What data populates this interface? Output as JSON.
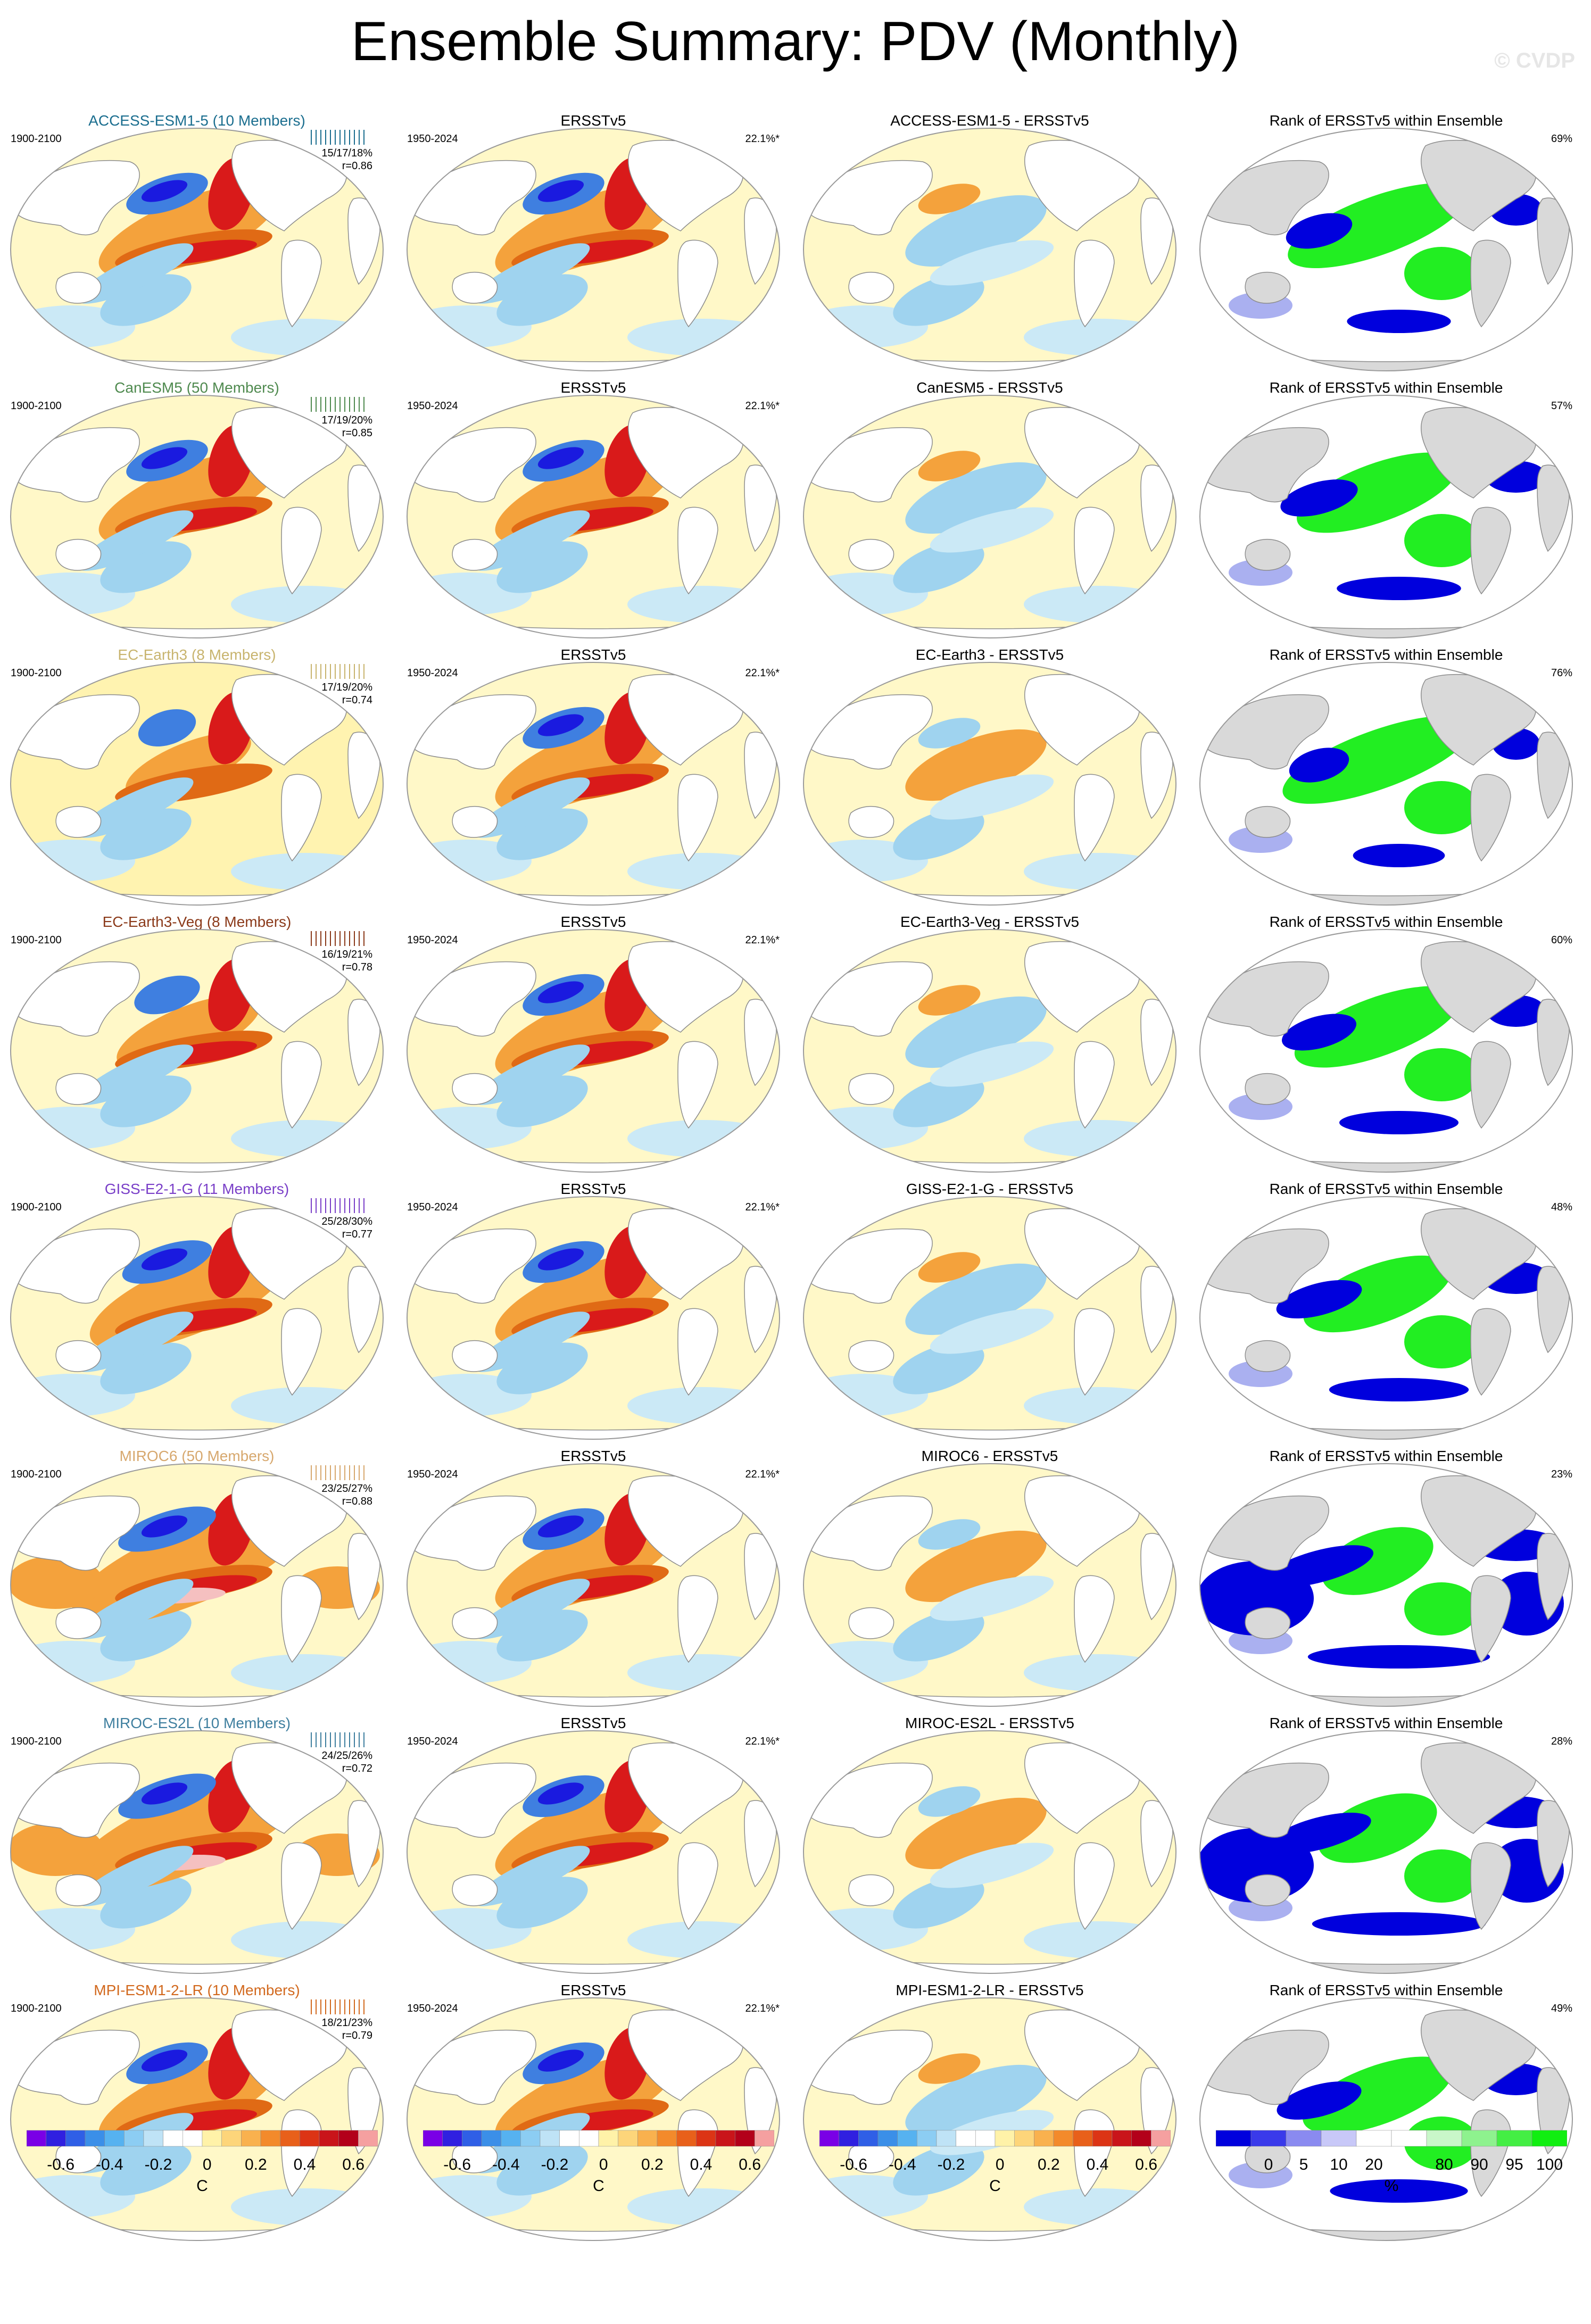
{
  "title": "Ensemble Summary: PDV (Monthly)",
  "watermark": "© CVDP",
  "colors": {
    "deep_blue": "#1a1adf",
    "mid_blue": "#3f7fe0",
    "light_blue": "#9fd3ef",
    "pale_blue": "#cbe9f6",
    "pale_yellow": "#fff3b0",
    "orange": "#f4a23c",
    "dark_orange": "#e06a15",
    "red": "#d91a1a",
    "dark_red": "#b3001a",
    "land_gray": "#d9d9d9",
    "rank_green": "#22ee22",
    "rank_blue": "#0000dd",
    "rank_lightblue": "#aab0f0",
    "rank_palegreen": "#c9f7c9"
  },
  "rows": [
    {
      "model_title": "ACCESS-ESM1-5 (10 Members)",
      "title_color": "#1b6e8f",
      "model_period": "1900-2100",
      "stats": "15/17/18%",
      "corr": "r=0.86",
      "obs_title": "ERSSTv5",
      "obs_period": "1950-2024",
      "obs_pct": "22.1%*",
      "diff_title": "ACCESS-ESM1-5 - ERSSTv5",
      "rank_title": "Rank of ERSSTv5 within Ensemble",
      "rank_pct": "69%",
      "model_strength": 1.0,
      "diff_sign": -1
    },
    {
      "model_title": "CanESM5 (50 Members)",
      "title_color": "#4f8a4f",
      "model_period": "1900-2100",
      "stats": "17/19/20%",
      "corr": "r=0.85",
      "obs_title": "ERSSTv5",
      "obs_period": "1950-2024",
      "obs_pct": "22.1%*",
      "diff_title": "CanESM5 - ERSSTv5",
      "rank_title": "Rank of ERSSTv5 within Ensemble",
      "rank_pct": "57%",
      "model_strength": 1.0,
      "diff_sign": -1
    },
    {
      "model_title": "EC-Earth3 (8 Members)",
      "title_color": "#c8b46e",
      "model_period": "1900-2100",
      "stats": "17/19/20%",
      "corr": "r=0.74",
      "obs_title": "ERSSTv5",
      "obs_period": "1950-2024",
      "obs_pct": "22.1%*",
      "diff_title": "EC-Earth3 - ERSSTv5",
      "rank_title": "Rank of ERSSTv5 within Ensemble",
      "rank_pct": "76%",
      "model_strength": 0.7,
      "diff_sign": 1
    },
    {
      "model_title": "EC-Earth3-Veg (8 Members)",
      "title_color": "#8b3a1a",
      "model_period": "1900-2100",
      "stats": "16/19/21%",
      "corr": "r=0.78",
      "obs_title": "ERSSTv5",
      "obs_period": "1950-2024",
      "obs_pct": "22.1%*",
      "diff_title": "EC-Earth3-Veg - ERSSTv5",
      "rank_title": "Rank of ERSSTv5 within Ensemble",
      "rank_pct": "60%",
      "model_strength": 0.8,
      "diff_sign": -1
    },
    {
      "model_title": "GISS-E2-1-G (11 Members)",
      "title_color": "#7a3fc8",
      "model_period": "1900-2100",
      "stats": "25/28/30%",
      "corr": "r=0.77",
      "obs_title": "ERSSTv5",
      "obs_period": "1950-2024",
      "obs_pct": "22.1%*",
      "diff_title": "GISS-E2-1-G - ERSSTv5",
      "rank_title": "Rank of ERSSTv5 within Ensemble",
      "rank_pct": "48%",
      "model_strength": 1.1,
      "diff_sign": -1
    },
    {
      "model_title": "MIROC6 (50 Members)",
      "title_color": "#d7a86e",
      "model_period": "1900-2100",
      "stats": "23/25/27%",
      "corr": "r=0.88",
      "obs_title": "ERSSTv5",
      "obs_period": "1950-2024",
      "obs_pct": "22.1%*",
      "diff_title": "MIROC6 - ERSSTv5",
      "rank_title": "Rank of ERSSTv5 within Ensemble",
      "rank_pct": "23%",
      "model_strength": 1.5,
      "diff_sign": 1
    },
    {
      "model_title": "MIROC-ES2L (10 Members)",
      "title_color": "#3f7f9f",
      "model_period": "1900-2100",
      "stats": "24/25/26%",
      "corr": "r=0.72",
      "obs_title": "ERSSTv5",
      "obs_period": "1950-2024",
      "obs_pct": "22.1%*",
      "diff_title": "MIROC-ES2L - ERSSTv5",
      "rank_title": "Rank of ERSSTv5 within Ensemble",
      "rank_pct": "28%",
      "model_strength": 1.5,
      "diff_sign": 1
    },
    {
      "model_title": "MPI-ESM1-2-LR (10 Members)",
      "title_color": "#d2691e",
      "model_period": "1900-2100",
      "stats": "18/21/23%",
      "corr": "r=0.79",
      "obs_title": "ERSSTv5",
      "obs_period": "1950-2024",
      "obs_pct": "22.1%*",
      "diff_title": "MPI-ESM1-2-LR - ERSSTv5",
      "rank_title": "Rank of ERSSTv5 within Ensemble",
      "rank_pct": "49%",
      "model_strength": 1.0,
      "diff_sign": -1
    }
  ],
  "colorbars": [
    {
      "ticks": [
        "-0.6",
        "-0.4",
        "-0.2",
        "0",
        "0.2",
        "0.4",
        "0.6"
      ],
      "unit": "C",
      "colors": [
        "#7a00e6",
        "#3020e0",
        "#2f5fe6",
        "#3b8fe8",
        "#56b2f0",
        "#8ccdf3",
        "#bfe3f6",
        "#ffffff",
        "#ffffff",
        "#fff2a8",
        "#fdd57a",
        "#f9b14e",
        "#f38a2b",
        "#e8601a",
        "#dc3415",
        "#c9141a",
        "#b3001a",
        "#f5a0a0"
      ]
    },
    {
      "ticks": [
        "-0.6",
        "-0.4",
        "-0.2",
        "0",
        "0.2",
        "0.4",
        "0.6"
      ],
      "unit": "C",
      "colors": [
        "#7a00e6",
        "#3020e0",
        "#2f5fe6",
        "#3b8fe8",
        "#56b2f0",
        "#8ccdf3",
        "#bfe3f6",
        "#ffffff",
        "#ffffff",
        "#fff2a8",
        "#fdd57a",
        "#f9b14e",
        "#f38a2b",
        "#e8601a",
        "#dc3415",
        "#c9141a",
        "#b3001a",
        "#f5a0a0"
      ]
    },
    {
      "ticks": [
        "-0.6",
        "-0.4",
        "-0.2",
        "0",
        "0.2",
        "0.4",
        "0.6"
      ],
      "unit": "C",
      "colors": [
        "#7a00e6",
        "#3020e0",
        "#2f5fe6",
        "#3b8fe8",
        "#56b2f0",
        "#8ccdf3",
        "#bfe3f6",
        "#ffffff",
        "#ffffff",
        "#fff2a8",
        "#fdd57a",
        "#f9b14e",
        "#f38a2b",
        "#e8601a",
        "#dc3415",
        "#c9141a",
        "#b3001a",
        "#f5a0a0"
      ]
    },
    {
      "ticks": [
        "0",
        "5",
        "10",
        "20",
        "80",
        "90",
        "95",
        "100"
      ],
      "unit": "%",
      "colors": [
        "#0000dd",
        "#3a3aea",
        "#8a8af0",
        "#c8c8f8",
        "#ffffff",
        "#ffffff",
        "#c9f7c9",
        "#8ef28e",
        "#44ee44",
        "#11ee11"
      ]
    }
  ]
}
